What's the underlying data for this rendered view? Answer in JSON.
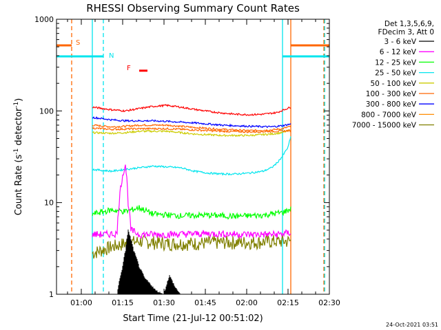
{
  "chart_data": {
    "type": "line",
    "title": "RHESSI Observing Summary Count Rates",
    "xlabel": "Start Time (21-Jul-12 00:51:02)",
    "ylabel_main": "Count Rate (s",
    "ylabel_sup1": "-1",
    "ylabel_mid": " detector",
    "ylabel_sup2": "-1",
    "ylabel_end": ")",
    "yscale": "log",
    "ylim": [
      1,
      1000
    ],
    "xlim_minutes_after_0051": [
      0,
      99
    ],
    "x_tick_labels": [
      "01:00",
      "01:15",
      "01:30",
      "01:45",
      "02:00",
      "02:15",
      "02:30"
    ],
    "x_tick_minutes": [
      9,
      24,
      39,
      54,
      69,
      84,
      99
    ],
    "y_tick_labels": [
      "1",
      "10",
      "100",
      "1000"
    ],
    "y_tick_values": [
      1,
      10,
      100,
      1000
    ],
    "legend_header": [
      "Det 1,3,5,6,9,",
      "FDecim 3, Att 0"
    ],
    "footer_date": "24-Oct-2021 03:51",
    "flags": [
      {
        "label": "S",
        "color": "#ff6600",
        "start": -1,
        "end": 5.5,
        "level": 0.905
      },
      {
        "label": "N",
        "color": "#00e5ee",
        "start": -1,
        "end": 17,
        "level": 0.865
      },
      {
        "label": "F",
        "color": "#ff0000",
        "start": 30,
        "end": 33,
        "level": 0.813
      }
    ],
    "vertical_lines": [
      {
        "minute": 5.5,
        "color": "#ff6600",
        "style": "dashed"
      },
      {
        "minute": 17,
        "color": "#00e5ee",
        "style": "dashed"
      },
      {
        "minute": 13,
        "color": "#00e5ee",
        "style": "solid"
      },
      {
        "minute": 82,
        "color": "#00e5ee",
        "style": "solid"
      },
      {
        "minute": 85,
        "color": "#ff6600",
        "style": "solid"
      },
      {
        "minute": 97,
        "color": "#ff6600",
        "style": "dashed"
      },
      {
        "minute": 97.3,
        "color": "#00e5ee",
        "style": "dashed"
      }
    ],
    "right_flags": [
      {
        "color": "#ff6600",
        "start": 85,
        "end": 100,
        "level": 0.905
      },
      {
        "color": "#00e5ee",
        "start": 82,
        "end": 100,
        "level": 0.865
      }
    ],
    "series": [
      {
        "name": "3 - 6 keV",
        "color": "#000000",
        "data_start": 13,
        "data_end": 85,
        "points": [
          [
            22,
            1
          ],
          [
            24,
            2
          ],
          [
            25,
            3
          ],
          [
            26,
            5
          ],
          [
            27,
            4
          ],
          [
            28,
            3
          ],
          [
            29,
            2.5
          ],
          [
            30,
            2
          ],
          [
            32,
            1.5
          ],
          [
            34,
            1.3
          ],
          [
            36,
            1.1
          ],
          [
            39,
            1
          ],
          [
            41,
            1.6
          ],
          [
            43,
            1.2
          ],
          [
            45,
            1
          ]
        ]
      },
      {
        "name": "6 - 12 keV",
        "color": "#ff00ff",
        "data_start": 13,
        "data_end": 85,
        "points": [
          [
            13,
            4.5
          ],
          [
            18,
            4.5
          ],
          [
            22,
            4.6
          ],
          [
            24,
            20
          ],
          [
            25,
            26
          ],
          [
            26,
            10
          ],
          [
            27,
            5
          ],
          [
            30,
            4.5
          ],
          [
            40,
            4.5
          ],
          [
            55,
            4.6
          ],
          [
            70,
            4.5
          ],
          [
            80,
            4.5
          ],
          [
            85,
            4.7
          ]
        ]
      },
      {
        "name": "12 - 25 keV",
        "color": "#00ff00",
        "data_start": 13,
        "data_end": 85,
        "points": [
          [
            13,
            7.5
          ],
          [
            20,
            8.3
          ],
          [
            25,
            8
          ],
          [
            30,
            8.8
          ],
          [
            35,
            7.5
          ],
          [
            45,
            7.2
          ],
          [
            55,
            7.3
          ],
          [
            65,
            7.1
          ],
          [
            75,
            7.3
          ],
          [
            82,
            7.8
          ],
          [
            85,
            8.5
          ]
        ]
      },
      {
        "name": "25 - 50 keV",
        "color": "#00e5ee",
        "data_start": 13,
        "data_end": 85,
        "points": [
          [
            13,
            23
          ],
          [
            20,
            22
          ],
          [
            25,
            23
          ],
          [
            30,
            24
          ],
          [
            35,
            25
          ],
          [
            40,
            24.5
          ],
          [
            45,
            24
          ],
          [
            50,
            22
          ],
          [
            55,
            21
          ],
          [
            60,
            20.5
          ],
          [
            65,
            20.5
          ],
          [
            70,
            21
          ],
          [
            75,
            22
          ],
          [
            78,
            24
          ],
          [
            80,
            27
          ],
          [
            82,
            32
          ],
          [
            84,
            40
          ],
          [
            85,
            52
          ]
        ]
      },
      {
        "name": "50 - 100 keV",
        "color": "#cccc00",
        "data_start": 13,
        "data_end": 85,
        "points": [
          [
            13,
            58
          ],
          [
            20,
            57
          ],
          [
            25,
            58
          ],
          [
            30,
            60
          ],
          [
            40,
            60
          ],
          [
            50,
            56
          ],
          [
            60,
            54
          ],
          [
            70,
            54
          ],
          [
            78,
            56
          ],
          [
            82,
            58
          ],
          [
            85,
            62
          ]
        ]
      },
      {
        "name": "100 - 300 keV",
        "color": "#ff6600",
        "data_start": 13,
        "data_end": 85,
        "points": [
          [
            13,
            70
          ],
          [
            20,
            67
          ],
          [
            25,
            68
          ],
          [
            30,
            70
          ],
          [
            40,
            70
          ],
          [
            50,
            66
          ],
          [
            60,
            63
          ],
          [
            70,
            61
          ],
          [
            78,
            62
          ],
          [
            82,
            64
          ],
          [
            85,
            68
          ]
        ]
      },
      {
        "name": "300 - 800 keV",
        "color": "#0000ff",
        "data_start": 13,
        "data_end": 85,
        "points": [
          [
            13,
            85
          ],
          [
            20,
            80
          ],
          [
            25,
            78
          ],
          [
            30,
            78
          ],
          [
            35,
            78
          ],
          [
            40,
            77
          ],
          [
            50,
            74
          ],
          [
            60,
            70
          ],
          [
            70,
            68
          ],
          [
            78,
            67
          ],
          [
            82,
            69
          ],
          [
            85,
            72
          ]
        ]
      },
      {
        "name": "800 - 7000 keV",
        "color": "#ff6600",
        "data_start": 13,
        "data_end": 85,
        "points": [
          [
            13,
            65
          ],
          [
            20,
            63
          ],
          [
            30,
            64
          ],
          [
            40,
            64
          ],
          [
            50,
            62
          ],
          [
            60,
            60
          ],
          [
            70,
            59
          ],
          [
            80,
            60
          ],
          [
            85,
            61
          ]
        ]
      },
      {
        "name": "7000 - 15000 keV",
        "color": "#808000",
        "data_start": 13,
        "data_end": 85,
        "points": [
          [
            13,
            2.8
          ],
          [
            20,
            3.3
          ],
          [
            25,
            3.6
          ],
          [
            30,
            3.8
          ],
          [
            40,
            3.6
          ],
          [
            50,
            3.6
          ],
          [
            60,
            3.7
          ],
          [
            70,
            3.7
          ],
          [
            80,
            3.8
          ],
          [
            85,
            3.8
          ]
        ]
      },
      {
        "name": "red_top",
        "color": "#ff0000",
        "data_start": 13,
        "data_end": 85,
        "points": [
          [
            13,
            110
          ],
          [
            20,
            103
          ],
          [
            25,
            100
          ],
          [
            30,
            106
          ],
          [
            35,
            112
          ],
          [
            40,
            115
          ],
          [
            45,
            110
          ],
          [
            50,
            104
          ],
          [
            55,
            99
          ],
          [
            60,
            95
          ],
          [
            65,
            92
          ],
          [
            70,
            91
          ],
          [
            75,
            92
          ],
          [
            80,
            96
          ],
          [
            85,
            110
          ]
        ]
      }
    ],
    "legend_entries": [
      {
        "label": "3 - 6 keV",
        "color": "#000000"
      },
      {
        "label": "6 - 12 keV",
        "color": "#ff00ff"
      },
      {
        "label": "12 - 25 keV",
        "color": "#00ff00"
      },
      {
        "label": "25 - 50 keV",
        "color": "#00e5ee"
      },
      {
        "label": "50 - 100 keV",
        "color": "#cccc00"
      },
      {
        "label": "100 - 300 keV",
        "color": "#ff6600"
      },
      {
        "label": "300 - 800 keV",
        "color": "#0000ff"
      },
      {
        "label": "800 - 7000 keV",
        "color": "#ff8c00"
      },
      {
        "label": "7000 - 15000 keV",
        "color": "#808000"
      }
    ]
  }
}
